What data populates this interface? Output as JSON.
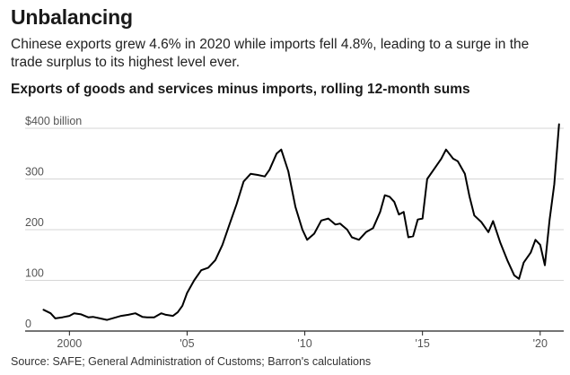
{
  "header": {
    "title": "Unbalancing",
    "subtitle": "Chinese exports grew 4.6% in 2020 while imports fell 4.8%, leading to a surge in the trade surplus to its highest level ever."
  },
  "chart_data": {
    "type": "line",
    "title": "Exports of goods and services minus imports, rolling 12-month sums",
    "ylim": [
      0,
      400
    ],
    "y_ticks": [
      {
        "value": 400,
        "label": "$400 billion"
      },
      {
        "value": 300,
        "label": "300"
      },
      {
        "value": 200,
        "label": "200"
      },
      {
        "value": 100,
        "label": "100"
      },
      {
        "value": 0,
        "label": "0"
      }
    ],
    "xlim": [
      1998.5,
      2021
    ],
    "x_ticks": [
      {
        "value": 2000,
        "label": "2000"
      },
      {
        "value": 2005,
        "label": "'05"
      },
      {
        "value": 2010,
        "label": "'10"
      },
      {
        "value": 2015,
        "label": "'15"
      },
      {
        "value": 2020,
        "label": "'20"
      }
    ],
    "grid": "horizontal",
    "line_color": "#000000",
    "series": [
      {
        "x": [
          1998.9,
          1999.2,
          1999.4,
          1999.7,
          2000.0,
          2000.2,
          2000.5,
          2000.8,
          2001.0,
          2001.3,
          2001.6,
          2001.9,
          2002.2,
          2002.5,
          2002.8,
          2003.1,
          2003.3,
          2003.6,
          2003.9,
          2004.1,
          2004.4,
          2004.6,
          2004.8,
          2005.0,
          2005.3,
          2005.6,
          2005.9,
          2006.2,
          2006.5,
          2006.8,
          2007.1,
          2007.4,
          2007.7,
          2008.0,
          2008.3,
          2008.5,
          2008.8,
          2009.0,
          2009.3,
          2009.6,
          2009.9,
          2010.1,
          2010.4,
          2010.7,
          2011.0,
          2011.3,
          2011.5,
          2011.8,
          2012.0,
          2012.3,
          2012.6,
          2012.9,
          2013.2,
          2013.4,
          2013.6,
          2013.8,
          2014.0,
          2014.2,
          2014.4,
          2014.6,
          2014.8,
          2015.0,
          2015.2,
          2015.5,
          2015.8,
          2016.0,
          2016.3,
          2016.5,
          2016.8,
          2017.0,
          2017.2,
          2017.5,
          2017.8,
          2018.0,
          2018.3,
          2018.6,
          2018.9,
          2019.1,
          2019.3,
          2019.6,
          2019.8,
          2020.0,
          2020.2,
          2020.4,
          2020.6,
          2020.8
        ],
        "y": [
          42,
          35,
          25,
          27,
          30,
          35,
          33,
          27,
          28,
          25,
          22,
          26,
          30,
          32,
          35,
          28,
          27,
          27,
          35,
          32,
          30,
          37,
          50,
          75,
          100,
          120,
          125,
          140,
          170,
          210,
          250,
          295,
          310,
          308,
          305,
          318,
          350,
          358,
          315,
          245,
          200,
          180,
          192,
          218,
          222,
          210,
          212,
          200,
          185,
          180,
          195,
          203,
          235,
          268,
          265,
          255,
          230,
          235,
          185,
          187,
          220,
          222,
          300,
          320,
          340,
          358,
          340,
          335,
          310,
          265,
          228,
          215,
          195,
          217,
          175,
          140,
          110,
          103,
          135,
          155,
          180,
          170,
          130,
          220,
          290,
          408
        ]
      }
    ]
  },
  "footer": {
    "source": "Source: SAFE; General Administration of Customs; Barron's calculations"
  }
}
